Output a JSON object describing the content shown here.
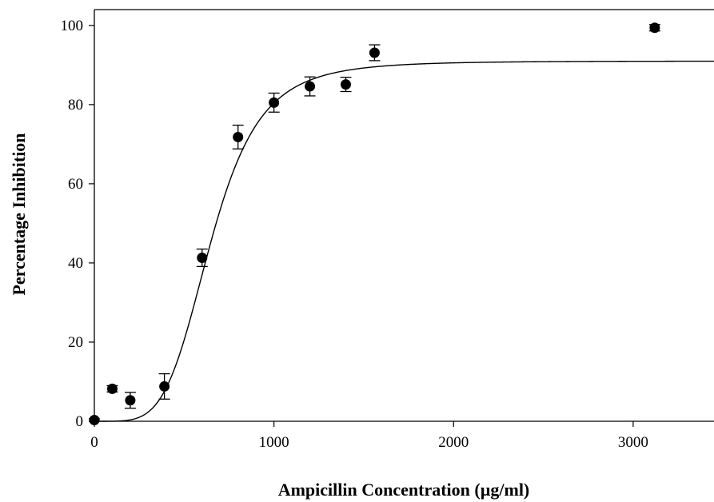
{
  "chart_data": {
    "type": "scatter",
    "title": "",
    "xlabel": "Ampicillin Concentration (µg/ml)",
    "ylabel": "Percentage Inhibition",
    "xlim": [
      0,
      3450
    ],
    "ylim": [
      0,
      104
    ],
    "x_ticks": [
      0,
      1000,
      2000,
      3000
    ],
    "x_tick_labels": [
      "0",
      "1000",
      "2000",
      "3000"
    ],
    "y_ticks": [
      0,
      20,
      40,
      60,
      80,
      100
    ],
    "y_tick_labels": [
      "0",
      "20",
      "40",
      "60",
      "80",
      "100"
    ],
    "grid": false,
    "legend": "none",
    "marker_color": "#000000",
    "points": [
      {
        "x": 0,
        "y": 0.3,
        "err": 0.3
      },
      {
        "x": 100,
        "y": 8.2,
        "err": 0.8
      },
      {
        "x": 200,
        "y": 5.3,
        "err": 2.0
      },
      {
        "x": 390,
        "y": 8.8,
        "err": 3.2
      },
      {
        "x": 600,
        "y": 41.3,
        "err": 2.2
      },
      {
        "x": 800,
        "y": 71.8,
        "err": 3.0
      },
      {
        "x": 1000,
        "y": 80.5,
        "err": 2.4
      },
      {
        "x": 1200,
        "y": 84.6,
        "err": 2.4
      },
      {
        "x": 1400,
        "y": 85.1,
        "err": 1.8
      },
      {
        "x": 1560,
        "y": 93.1,
        "err": 2.0
      },
      {
        "x": 3120,
        "y": 99.4,
        "err": 0.8
      }
    ],
    "fit": {
      "type": "sigmoid",
      "top": 91,
      "x50": 650,
      "slope": 4.7
    }
  }
}
